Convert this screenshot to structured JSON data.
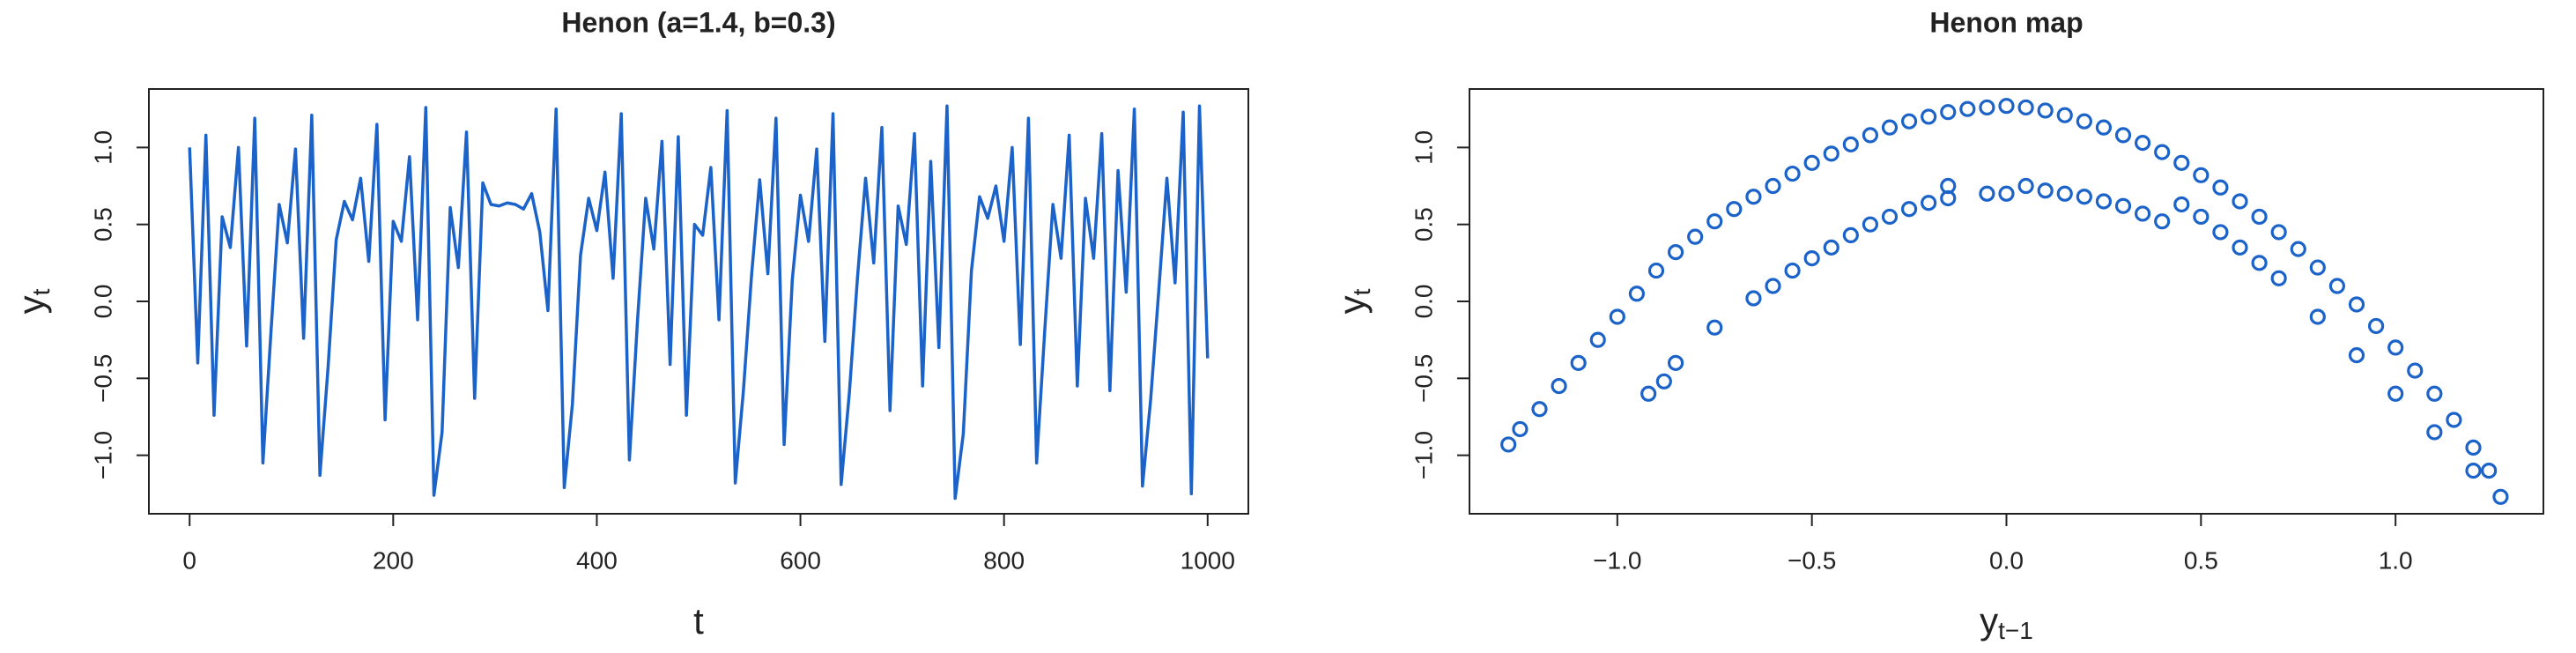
{
  "chart_data": [
    {
      "type": "line",
      "title": "Henon (a=1.4, b=0.3)",
      "xlabel": "t",
      "ylabel": "y",
      "ylabel_sub": "t",
      "color": "#1c63c9",
      "x": [
        0,
        8,
        16,
        24,
        32,
        40,
        48,
        56,
        64,
        72,
        80,
        88,
        96,
        104,
        112,
        120,
        128,
        136,
        144,
        152,
        160,
        168,
        176,
        184,
        192,
        200,
        208,
        216,
        224,
        232,
        240,
        248,
        256,
        264,
        272,
        280,
        288,
        296,
        304,
        312,
        320,
        328,
        336,
        344,
        352,
        360,
        368,
        376,
        384,
        392,
        400,
        408,
        416,
        424,
        432,
        440,
        448,
        456,
        464,
        472,
        480,
        488,
        496,
        504,
        512,
        520,
        528,
        536,
        544,
        552,
        560,
        568,
        576,
        584,
        592,
        600,
        608,
        616,
        624,
        632,
        640,
        648,
        656,
        664,
        672,
        680,
        688,
        696,
        704,
        712,
        720,
        728,
        736,
        744,
        752,
        760,
        768,
        776,
        784,
        792,
        800,
        808,
        816,
        824,
        832,
        840,
        848,
        856,
        864,
        872,
        880,
        888,
        896,
        904,
        912,
        920,
        928,
        936,
        944,
        952,
        960,
        968,
        976,
        984,
        992,
        1000
      ],
      "values": [
        1.0,
        -0.4,
        1.08,
        -0.74,
        0.55,
        0.35,
        1.0,
        -0.29,
        1.19,
        -1.05,
        -0.19,
        0.63,
        0.38,
        0.99,
        -0.24,
        1.21,
        -1.13,
        -0.43,
        0.4,
        0.65,
        0.53,
        0.8,
        0.26,
        1.15,
        -0.77,
        0.52,
        0.39,
        0.94,
        -0.12,
        1.26,
        -1.26,
        -0.85,
        0.61,
        0.22,
        1.1,
        -0.63,
        0.77,
        0.63,
        0.62,
        0.64,
        0.63,
        0.6,
        0.7,
        0.45,
        -0.06,
        1.25,
        -1.21,
        -0.67,
        0.3,
        0.67,
        0.46,
        0.84,
        0.15,
        1.22,
        -1.03,
        -0.12,
        0.67,
        0.34,
        1.04,
        -0.41,
        1.07,
        -0.74,
        0.5,
        0.43,
        0.87,
        -0.12,
        1.24,
        -1.18,
        -0.58,
        0.17,
        0.79,
        0.18,
        1.19,
        -0.93,
        0.14,
        0.69,
        0.39,
        0.99,
        -0.26,
        1.22,
        -1.19,
        -0.6,
        0.15,
        0.8,
        0.25,
        1.13,
        -0.71,
        0.62,
        0.37,
        1.09,
        -0.55,
        0.91,
        -0.3,
        1.27,
        -1.28,
        -0.86,
        0.2,
        0.68,
        0.54,
        0.75,
        0.39,
        1.0,
        -0.28,
        1.19,
        -1.05,
        -0.19,
        0.63,
        0.28,
        1.08,
        -0.55,
        0.67,
        0.28,
        1.09,
        -0.58,
        0.85,
        0.06,
        1.25,
        -1.2,
        -0.64,
        0.07,
        0.8,
        0.12,
        1.23,
        -1.25,
        1.27,
        -0.37
      ],
      "xlim": [
        -40,
        1040
      ],
      "xticks": [
        0,
        200,
        400,
        600,
        800,
        1000
      ],
      "ylim": [
        -1.38,
        1.38
      ],
      "yticks": [
        {
          "value": -1,
          "label": "−1.0"
        },
        {
          "value": -0.5,
          "label": "−0.5"
        },
        {
          "value": 0,
          "label": "0.0"
        },
        {
          "value": 0.5,
          "label": "0.5"
        },
        {
          "value": 1,
          "label": "1.0"
        }
      ]
    },
    {
      "type": "scatter",
      "title": "Henon map",
      "xlabel": "y",
      "xlabel_sub": "t−1",
      "ylabel": "y",
      "ylabel_sub": "t",
      "color": "#1c63c9",
      "x": [
        -1.28,
        -1.25,
        -1.2,
        -1.15,
        -1.1,
        -1.05,
        -1.0,
        -0.95,
        -0.9,
        -0.85,
        -0.8,
        -0.75,
        -0.7,
        -0.65,
        -0.6,
        -0.55,
        -0.5,
        -0.45,
        -0.4,
        -0.35,
        -0.3,
        -0.25,
        -0.2,
        -0.15,
        -0.1,
        -0.05,
        0.0,
        0.05,
        0.1,
        0.15,
        0.2,
        0.25,
        0.3,
        0.35,
        0.4,
        0.45,
        0.5,
        0.55,
        0.6,
        0.65,
        0.7,
        0.75,
        0.8,
        0.85,
        0.9,
        0.95,
        1.0,
        1.05,
        1.1,
        1.15,
        1.2,
        1.24,
        1.27,
        0.45,
        0.5,
        0.55,
        0.6,
        0.65,
        0.7,
        0.8,
        0.9,
        1.0,
        1.1,
        1.2,
        -0.92,
        -0.88,
        -0.85,
        -0.75,
        -0.65,
        -0.6,
        -0.55,
        -0.5,
        -0.45,
        -0.4,
        -0.35,
        -0.3,
        -0.25,
        -0.2,
        -0.15,
        -0.15,
        -0.05,
        0.0,
        0.05,
        0.1,
        0.15,
        0.2,
        0.25,
        0.3,
        0.35,
        0.4
      ],
      "values": [
        -0.93,
        -0.83,
        -0.7,
        -0.55,
        -0.4,
        -0.25,
        -0.1,
        0.05,
        0.2,
        0.32,
        0.42,
        0.52,
        0.6,
        0.68,
        0.75,
        0.83,
        0.9,
        0.96,
        1.02,
        1.08,
        1.13,
        1.17,
        1.2,
        1.23,
        1.25,
        1.26,
        1.27,
        1.26,
        1.24,
        1.21,
        1.17,
        1.13,
        1.08,
        1.03,
        0.97,
        0.9,
        0.82,
        0.74,
        0.65,
        0.55,
        0.45,
        0.34,
        0.22,
        0.1,
        -0.02,
        -0.16,
        -0.3,
        -0.45,
        -0.6,
        -0.77,
        -0.95,
        -1.1,
        -1.27,
        0.63,
        0.55,
        0.45,
        0.35,
        0.25,
        0.15,
        -0.1,
        -0.35,
        -0.6,
        -0.85,
        -1.1,
        -0.6,
        -0.52,
        -0.4,
        -0.17,
        0.02,
        0.1,
        0.2,
        0.28,
        0.35,
        0.43,
        0.5,
        0.55,
        0.6,
        0.64,
        0.67,
        0.75,
        0.7,
        0.7,
        0.75,
        0.72,
        0.7,
        0.68,
        0.65,
        0.62,
        0.57,
        0.52
      ],
      "xlim": [
        -1.38,
        1.38
      ],
      "xticks": [
        {
          "value": -1,
          "label": "−1.0"
        },
        {
          "value": -0.5,
          "label": "−0.5"
        },
        {
          "value": 0,
          "label": "0.0"
        },
        {
          "value": 0.5,
          "label": "0.5"
        },
        {
          "value": 1,
          "label": "1.0"
        }
      ],
      "ylim": [
        -1.38,
        1.38
      ],
      "yticks": [
        {
          "value": -1,
          "label": "−1.0"
        },
        {
          "value": -0.5,
          "label": "−0.5"
        },
        {
          "value": 0,
          "label": "0.0"
        },
        {
          "value": 0.5,
          "label": "0.5"
        },
        {
          "value": 1,
          "label": "1.0"
        }
      ]
    }
  ]
}
